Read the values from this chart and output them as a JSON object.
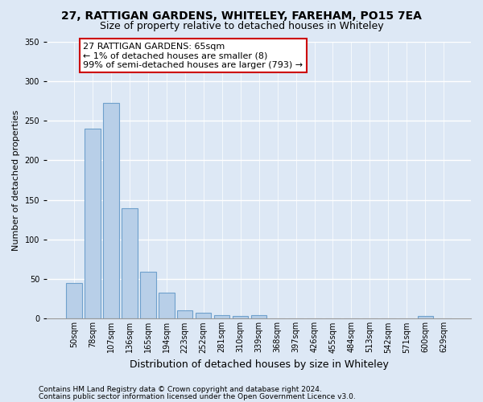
{
  "title1": "27, RATTIGAN GARDENS, WHITELEY, FAREHAM, PO15 7EA",
  "title2": "Size of property relative to detached houses in Whiteley",
  "xlabel": "Distribution of detached houses by size in Whiteley",
  "ylabel": "Number of detached properties",
  "categories": [
    "50sqm",
    "78sqm",
    "107sqm",
    "136sqm",
    "165sqm",
    "194sqm",
    "223sqm",
    "252sqm",
    "281sqm",
    "310sqm",
    "339sqm",
    "368sqm",
    "397sqm",
    "426sqm",
    "455sqm",
    "484sqm",
    "513sqm",
    "542sqm",
    "571sqm",
    "600sqm",
    "629sqm"
  ],
  "values": [
    45,
    240,
    272,
    139,
    59,
    33,
    11,
    7,
    4,
    3,
    4,
    0,
    0,
    0,
    0,
    0,
    0,
    0,
    0,
    3,
    0
  ],
  "bar_color": "#b8cfe8",
  "bar_edge_color": "#6fa0cc",
  "background_color": "#dde8f5",
  "grid_color": "#ffffff",
  "annotation_box_text": "27 RATTIGAN GARDENS: 65sqm\n← 1% of detached houses are smaller (8)\n99% of semi-detached houses are larger (793) →",
  "annotation_box_color": "#ffffff",
  "annotation_box_edge_color": "#cc0000",
  "footer1": "Contains HM Land Registry data © Crown copyright and database right 2024.",
  "footer2": "Contains public sector information licensed under the Open Government Licence v3.0.",
  "ylim": [
    0,
    350
  ],
  "yticks": [
    0,
    50,
    100,
    150,
    200,
    250,
    300,
    350
  ],
  "title1_fontsize": 10,
  "title2_fontsize": 9,
  "xlabel_fontsize": 9,
  "ylabel_fontsize": 8,
  "tick_fontsize": 7,
  "annotation_fontsize": 8,
  "footer_fontsize": 6.5
}
